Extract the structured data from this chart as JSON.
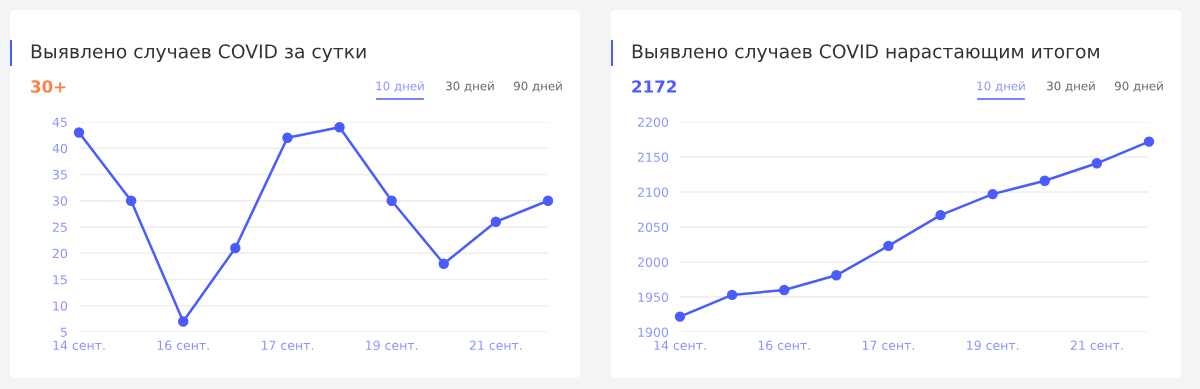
{
  "chart_data": [
    {
      "type": "line",
      "title": "Выявлено случаев COVID за сутки",
      "categories": [
        "14 сент.",
        null,
        "16 сент.",
        null,
        "17 сент.",
        null,
        "19 сент.",
        null,
        "21 сент.",
        null
      ],
      "series": [
        {
          "color": "#4a5cff",
          "values": [
            43,
            30,
            7,
            21,
            42,
            44,
            30,
            18,
            26,
            30
          ]
        }
      ],
      "ylim": [
        5,
        45
      ],
      "yticks": [
        5,
        10,
        15,
        20,
        25,
        30,
        35,
        40,
        45
      ],
      "grid": "y",
      "marker": "circle",
      "line_style": "solid",
      "annotations": [
        "30+",
        "10 дней",
        "30 дней",
        "90 дней"
      ]
    },
    {
      "type": "line",
      "title": "Выявлено случаев COVID нарастающим итогом",
      "categories": [
        "14 сент.",
        null,
        "16 сент.",
        null,
        "17 сент.",
        null,
        "19 сент.",
        null,
        "21 сент.",
        null
      ],
      "series": [
        {
          "color": "#4a5cff",
          "values": [
            1922,
            1953,
            1960,
            1981,
            2023,
            2067,
            2097,
            2116,
            2141,
            2172
          ]
        }
      ],
      "ylim": [
        1900,
        2200
      ],
      "yticks": [
        1900,
        1950,
        2000,
        2050,
        2100,
        2150,
        2200
      ],
      "grid": "y",
      "marker": "circle",
      "line_style": "solid",
      "annotations": [
        "2172",
        "10 дней",
        "30 дней",
        "90 дней"
      ]
    }
  ]
}
